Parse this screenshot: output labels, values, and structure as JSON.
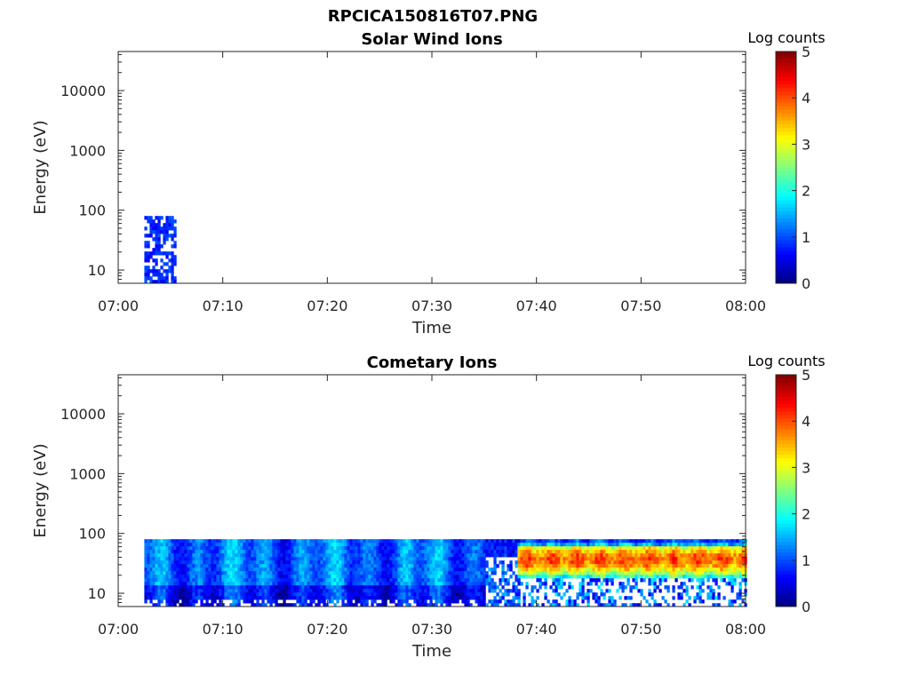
{
  "figure": {
    "title": "RPCICA150816T07.PNG"
  },
  "colormap": "jet",
  "chart_data": [
    {
      "type": "heatmap",
      "title": "Solar Wind Ions",
      "xlabel": "Time",
      "ylabel": "Energy (eV)",
      "x_ticks": [
        "07:00",
        "07:10",
        "07:20",
        "07:30",
        "07:40",
        "07:50",
        "08:00"
      ],
      "x_range": [
        "07:00",
        "08:00"
      ],
      "y_scale": "log",
      "y_ticks": [
        "10",
        "100",
        "1000",
        "10000"
      ],
      "y_range": [
        6,
        45000
      ],
      "colorbar": {
        "label": "Log counts",
        "ticks": [
          "0",
          "1",
          "2",
          "3",
          "4",
          "5"
        ],
        "range": [
          0,
          5
        ]
      },
      "data_extent": {
        "time_start": "07:02:30",
        "time_end": "07:05:30",
        "energy_min": 6,
        "energy_max": 80
      },
      "dominant_level": 0.6
    },
    {
      "type": "heatmap",
      "title": "Cometary Ions",
      "xlabel": "Time",
      "ylabel": "Energy (eV)",
      "x_ticks": [
        "07:00",
        "07:10",
        "07:20",
        "07:30",
        "07:40",
        "07:50",
        "08:00"
      ],
      "x_range": [
        "07:00",
        "08:00"
      ],
      "y_scale": "log",
      "y_ticks": [
        "10",
        "100",
        "1000",
        "10000"
      ],
      "y_range": [
        6,
        45000
      ],
      "colorbar": {
        "label": "Log counts",
        "ticks": [
          "0",
          "1",
          "2",
          "3",
          "4",
          "5"
        ],
        "range": [
          0,
          5
        ]
      },
      "data_extent": {
        "time_start": "07:02:30",
        "time_end": "08:00:00",
        "energy_min": 6,
        "energy_max": 80
      },
      "regimes": [
        {
          "from": "07:02:30",
          "to": "07:37:00",
          "peak_log_counts": 2.2,
          "typical_log_counts": 1.5
        },
        {
          "from": "07:38:00",
          "to": "08:00:00",
          "peak_log_counts": 4.2,
          "typical_log_counts": 3.6,
          "low_energy_cutoff": 15
        }
      ]
    }
  ]
}
